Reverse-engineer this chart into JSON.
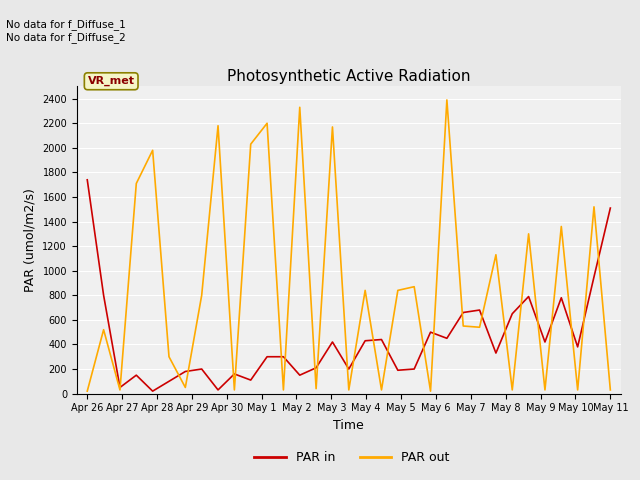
{
  "title": "Photosynthetic Active Radiation",
  "xlabel": "Time",
  "ylabel": "PAR (umol/m2/s)",
  "annotation_text": "No data for f_Diffuse_1\nNo data for f_Diffuse_2",
  "legend_label_text": "VR_met",
  "legend_entries": [
    "PAR in",
    "PAR out"
  ],
  "background_color": "#e8e8e8",
  "plot_bg_color": "#f0f0f0",
  "ylim": [
    0,
    2500
  ],
  "yticks": [
    0,
    200,
    400,
    600,
    800,
    1000,
    1200,
    1400,
    1600,
    1800,
    2000,
    2200,
    2400
  ],
  "xtick_labels": [
    "Apr 26",
    "Apr 27",
    "Apr 28",
    "Apr 29",
    "Apr 30",
    "May 1",
    "May 2",
    "May 3",
    "May 4",
    "May 5",
    "May 6",
    "May 7",
    "May 8",
    "May 9",
    "May 10",
    "May 11"
  ],
  "par_in": [
    1740,
    800,
    50,
    150,
    20,
    100,
    180,
    200,
    30,
    160,
    110,
    300,
    300,
    150,
    210,
    420,
    200,
    430,
    440,
    190,
    200,
    500,
    450,
    660,
    680,
    330,
    650,
    790,
    420,
    780,
    380,
    950,
    1510
  ],
  "par_out": [
    20,
    520,
    30,
    1710,
    1980,
    300,
    50,
    800,
    2180,
    30,
    2030,
    2200,
    30,
    2330,
    40,
    2170,
    30,
    840,
    30,
    840,
    870,
    20,
    2390,
    550,
    540,
    1130,
    30,
    1300,
    30,
    1360,
    30,
    1520,
    30
  ],
  "par_in_color": "#cc0000",
  "par_out_color": "#ffaa00",
  "line_width": 1.2,
  "title_fontsize": 11,
  "tick_fontsize": 7,
  "ylabel_fontsize": 9,
  "xlabel_fontsize": 9
}
